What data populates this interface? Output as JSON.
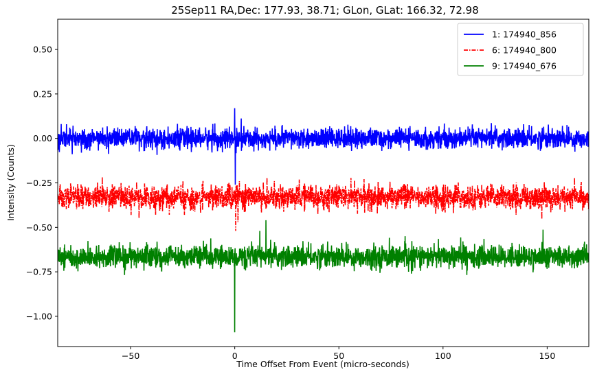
{
  "chart_data": {
    "type": "line",
    "title": "25Sep11 RA,Dec:  177.93,  38.71; GLon, GLat:  166.32,  72.98",
    "xlabel": "Time Offset From Event (micro-seconds)",
    "ylabel": "Intensity (Counts)",
    "xlim": [
      -85,
      170
    ],
    "ylim": [
      -1.17,
      0.67
    ],
    "xticks": [
      -50,
      0,
      50,
      100,
      150
    ],
    "xtick_labels": [
      "−50",
      "0",
      "50",
      "100",
      "150"
    ],
    "yticks": [
      0.5,
      0.25,
      0.0,
      -0.25,
      -0.5,
      -0.75,
      -1.0
    ],
    "ytick_labels": [
      "0.50",
      "0.25",
      "0.00",
      "−0.25",
      "−0.50",
      "−0.75",
      "−1.00"
    ],
    "legend_position": "top-right",
    "series": [
      {
        "name": "1: 174940_856",
        "color": "#0000ff",
        "style": "solid",
        "baseline": 0.0,
        "noise_amplitude": 0.05,
        "features": [
          {
            "x": 0.0,
            "y": 0.17
          },
          {
            "x": 0.3,
            "y": -0.26
          }
        ]
      },
      {
        "name": "6: 174940_800",
        "color": "#ff0000",
        "style": "dashdot",
        "baseline": -0.33,
        "noise_amplitude": 0.06,
        "features": [
          {
            "x": 0.5,
            "y": -0.52
          },
          {
            "x": 1.5,
            "y": -0.47
          }
        ]
      },
      {
        "name": "9: 174940_676",
        "color": "#008000",
        "style": "solid",
        "baseline": -0.665,
        "noise_amplitude": 0.055,
        "features": [
          {
            "x": 0.0,
            "y": -1.09
          },
          {
            "x": 15.0,
            "y": -0.46
          },
          {
            "x": 12.0,
            "y": -0.52
          }
        ]
      }
    ]
  }
}
